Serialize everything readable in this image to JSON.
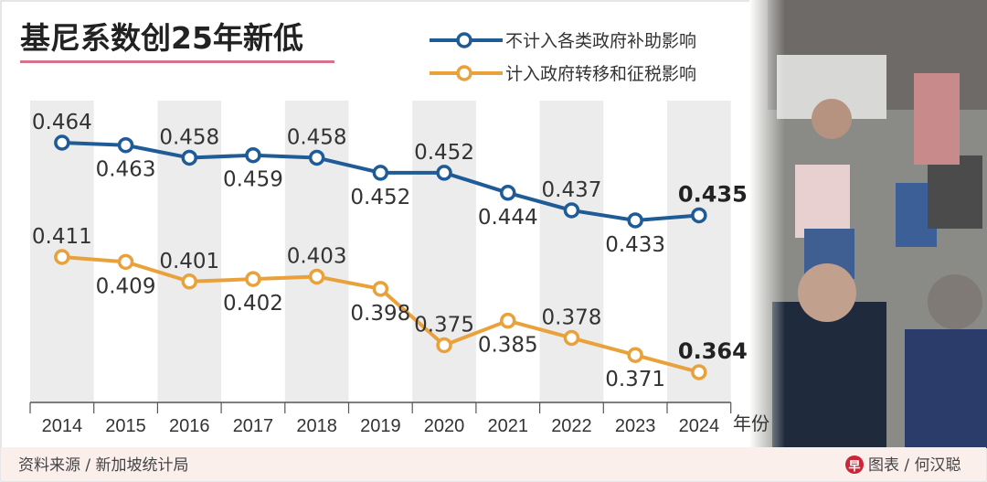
{
  "title": "基尼系数创25年新低",
  "source": "资料来源 / 新加坡统计局",
  "credit": "图表 / 何汉聪",
  "colors": {
    "blue": "#1f5b96",
    "orange": "#e9a23b",
    "band": "#ececec",
    "title_underline": "#d9718a",
    "footer_bg": "#fbefec"
  },
  "chart_data": {
    "type": "line",
    "title": "基尼系数创25年新低",
    "xlabel": "年份",
    "categories": [
      "2014",
      "2015",
      "2016",
      "2017",
      "2018",
      "2019",
      "2020",
      "2021",
      "2022",
      "2023",
      "2024"
    ],
    "series": [
      {
        "name": "不计入各类政府补助影响",
        "color": "#1f5b96",
        "values": [
          0.464,
          0.463,
          0.458,
          0.459,
          0.458,
          0.452,
          0.452,
          0.444,
          0.437,
          0.433,
          0.435
        ]
      },
      {
        "name": "计入政府转移和征税影响",
        "color": "#e9a23b",
        "values": [
          0.411,
          0.409,
          0.401,
          0.402,
          0.403,
          0.398,
          0.375,
          0.385,
          0.378,
          0.371,
          0.364
        ]
      }
    ],
    "data_labels": true,
    "alternating_bands": true,
    "legend": "top-right"
  }
}
